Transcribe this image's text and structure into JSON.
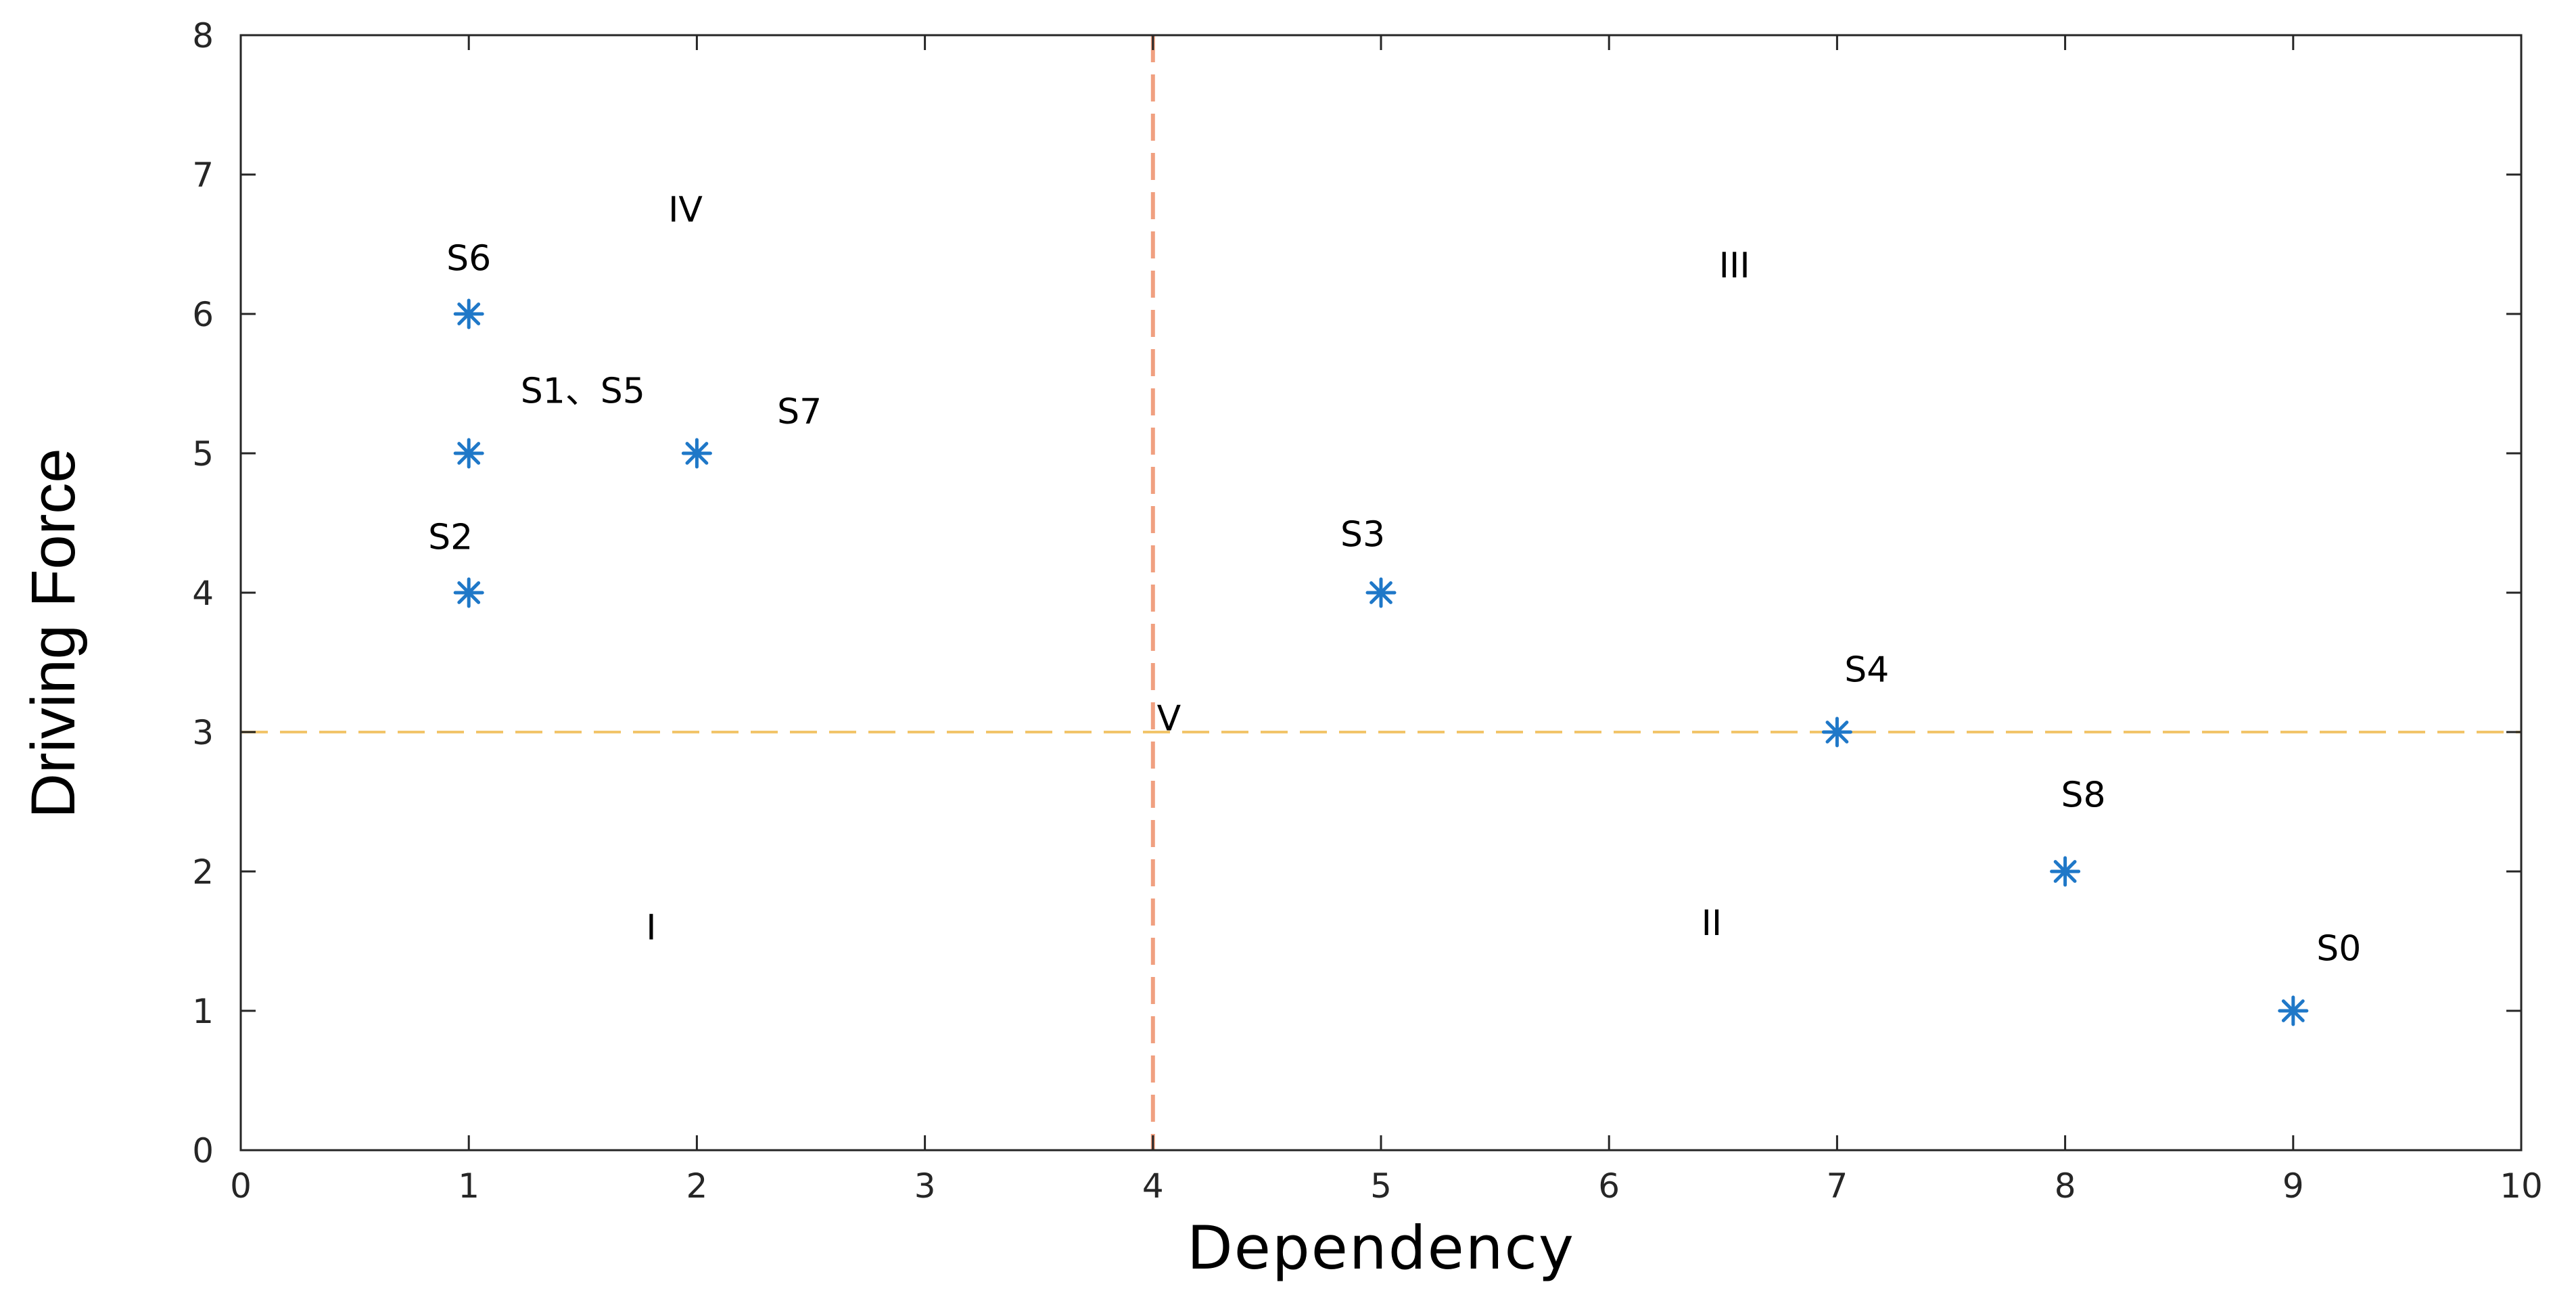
{
  "chart_data": {
    "type": "scatter",
    "title": "",
    "xlabel": "Dependency",
    "ylabel": "Driving Force",
    "xlim": [
      0,
      10
    ],
    "ylim": [
      0,
      8
    ],
    "xticks": [
      0,
      1,
      2,
      3,
      4,
      5,
      6,
      7,
      8,
      9,
      10
    ],
    "yticks": [
      0,
      1,
      2,
      3,
      4,
      5,
      6,
      7,
      8
    ],
    "grid": false,
    "marker": "asterisk",
    "marker_color": "#1f78c8",
    "points": [
      {
        "x": 1,
        "y": 6
      },
      {
        "x": 1,
        "y": 5
      },
      {
        "x": 2,
        "y": 5
      },
      {
        "x": 1,
        "y": 4
      },
      {
        "x": 5,
        "y": 4
      },
      {
        "x": 7,
        "y": 3
      },
      {
        "x": 8,
        "y": 2
      },
      {
        "x": 9,
        "y": 1
      }
    ],
    "point_labels": [
      {
        "text": "S6",
        "x": 1.0,
        "y": 6.4
      },
      {
        "text": "S1、S5",
        "x": 1.5,
        "y": 5.45
      },
      {
        "text": "S7",
        "x": 2.45,
        "y": 5.3
      },
      {
        "text": "S2",
        "x": 0.92,
        "y": 4.4
      },
      {
        "text": "S3",
        "x": 4.92,
        "y": 4.42
      },
      {
        "text": "S4",
        "x": 7.13,
        "y": 3.45
      },
      {
        "text": "S8",
        "x": 8.08,
        "y": 2.55
      },
      {
        "text": "S0",
        "x": 9.2,
        "y": 1.45
      }
    ],
    "reference_lines": [
      {
        "orientation": "vertical",
        "value": 4,
        "color": "#f0a080",
        "style": "dashed"
      },
      {
        "orientation": "horizontal",
        "value": 3,
        "color": "#f2c56a",
        "style": "dashed"
      }
    ],
    "region_labels": [
      {
        "text": "I",
        "x": 1.8,
        "y": 1.6
      },
      {
        "text": "II",
        "x": 6.45,
        "y": 1.63
      },
      {
        "text": "III",
        "x": 6.55,
        "y": 6.35
      },
      {
        "text": "IV",
        "x": 1.95,
        "y": 6.75
      },
      {
        "text": "V",
        "x": 4.07,
        "y": 3.1
      }
    ]
  }
}
